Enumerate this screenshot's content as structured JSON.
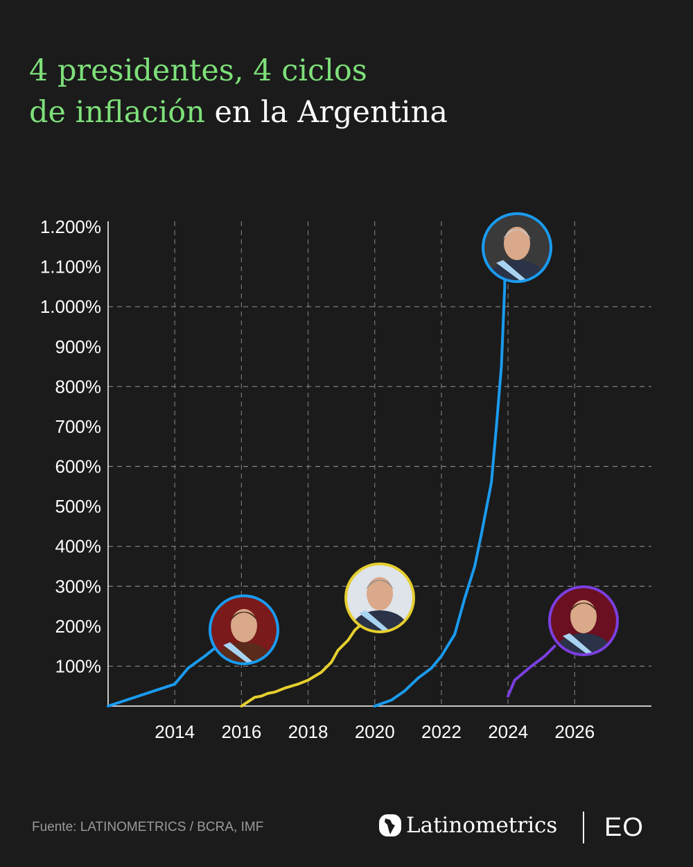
{
  "title": {
    "line1_highlight": "4 presidentes, 4 ciclos",
    "line2_highlight": "de inflación",
    "line2_rest": " en la Argentina"
  },
  "footer": {
    "source": "Fuente: LATINOMETRICS / BCRA, IMF",
    "brand": "Latinometrics",
    "partner": "EO"
  },
  "colors": {
    "background": "#1b1b1b",
    "title_accent": "#7ee07a",
    "blue": "#1a9bf0",
    "yellow": "#e6cf2e",
    "purple": "#7b3fe0"
  },
  "chart_data": {
    "type": "line",
    "title": "",
    "xlabel": "",
    "ylabel": "",
    "xlim": [
      2012,
      2028
    ],
    "ylim": [
      0,
      1200
    ],
    "x_ticks": [
      2014,
      2016,
      2018,
      2020,
      2022,
      2024,
      2026
    ],
    "x_tick_labels": [
      "2014",
      "2016",
      "2018",
      "2020",
      "2022",
      "2024",
      "2026"
    ],
    "y_ticks": [
      100,
      200,
      300,
      400,
      500,
      600,
      700,
      800,
      900,
      1000,
      1100,
      1200
    ],
    "y_tick_labels": [
      "100%",
      "200%",
      "300%",
      "400%",
      "500%",
      "600%",
      "700%",
      "800%",
      "900%",
      "1.000%",
      "1.100%",
      "1.200%"
    ],
    "grid": {
      "x": true,
      "y_values": [
        100,
        300,
        400,
        600,
        800,
        1000
      ],
      "style": "dashed"
    },
    "series": [
      {
        "color": "#1a9bf0",
        "photo": "president-photo",
        "points": [
          [
            2012.0,
            0
          ],
          [
            2014.0,
            55
          ],
          [
            2014.4,
            95
          ],
          [
            2014.9,
            125
          ],
          [
            2015.2,
            145
          ]
        ]
      },
      {
        "color": "#e6cf2e",
        "photo": "president-photo",
        "points": [
          [
            2016.0,
            0
          ],
          [
            2016.4,
            22
          ],
          [
            2016.6,
            25
          ],
          [
            2016.8,
            32
          ],
          [
            2017.0,
            35
          ],
          [
            2017.3,
            45
          ],
          [
            2017.7,
            55
          ],
          [
            2018.0,
            65
          ],
          [
            2018.4,
            85
          ],
          [
            2018.7,
            110
          ],
          [
            2018.9,
            140
          ],
          [
            2019.2,
            165
          ],
          [
            2019.4,
            190
          ],
          [
            2019.6,
            205
          ]
        ]
      },
      {
        "color": "#1a9bf0",
        "photo": "president-photo",
        "points": [
          [
            2020.0,
            0
          ],
          [
            2020.5,
            15
          ],
          [
            2020.9,
            38
          ],
          [
            2021.3,
            70
          ],
          [
            2021.7,
            95
          ],
          [
            2022.0,
            125
          ],
          [
            2022.4,
            180
          ],
          [
            2022.7,
            270
          ],
          [
            2023.0,
            350
          ],
          [
            2023.2,
            430
          ],
          [
            2023.5,
            560
          ],
          [
            2023.65,
            700
          ],
          [
            2023.8,
            850
          ],
          [
            2023.85,
            950
          ],
          [
            2023.9,
            1050
          ],
          [
            2023.9,
            1120
          ]
        ]
      },
      {
        "color": "#7b3fe0",
        "photo": "president-photo",
        "points": [
          [
            2024.0,
            25
          ],
          [
            2024.2,
            65
          ],
          [
            2024.7,
            100
          ],
          [
            2025.1,
            125
          ],
          [
            2025.4,
            150
          ]
        ]
      }
    ]
  }
}
